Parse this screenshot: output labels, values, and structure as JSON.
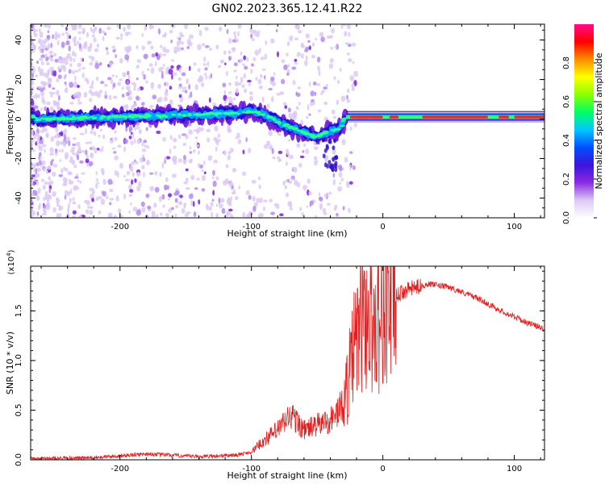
{
  "title": "GN02.2023.365.12.41.R22",
  "chart_data": [
    {
      "type": "heatmap",
      "xlabel": "Height of straight line (km)",
      "ylabel": "Frequency (Hz)",
      "xlim": [
        -268,
        123
      ],
      "ylim": [
        -50,
        48
      ],
      "xticks": [
        -200,
        -100,
        0,
        100
      ],
      "yticks": [
        -40,
        -20,
        0,
        20,
        40
      ],
      "colorbar": {
        "label": "Normalized spectral amplitude",
        "range": [
          0,
          1
        ],
        "ticks": [
          0.0,
          0.2,
          0.4,
          0.6,
          0.8
        ],
        "tick_labels": [
          "0.0",
          "0.2",
          "0.4",
          "0.6",
          "0.8"
        ],
        "colormap": [
          "#ffffff",
          "#dcc8f5",
          "#8a2be2",
          "#3c14dc",
          "#0050ff",
          "#00c8ff",
          "#00ff64",
          "#8cff00",
          "#ffff00",
          "#ff8c00",
          "#ff0000",
          "#ff0a8c"
        ]
      },
      "ridge": [
        {
          "x": -265,
          "y": 0
        },
        {
          "x": -200,
          "y": 1
        },
        {
          "x": -150,
          "y": 2
        },
        {
          "x": -110,
          "y": 3
        },
        {
          "x": -100,
          "y": 4
        },
        {
          "x": -90,
          "y": 2
        },
        {
          "x": -75,
          "y": -3
        },
        {
          "x": -60,
          "y": -7
        },
        {
          "x": -50,
          "y": -9
        },
        {
          "x": -40,
          "y": -6
        },
        {
          "x": -33,
          "y": -5
        },
        {
          "x": -28,
          "y": 1
        },
        {
          "x": -20,
          "y": 1
        },
        {
          "x": 0,
          "y": 1
        },
        {
          "x": 40,
          "y": 1
        },
        {
          "x": 100,
          "y": 1
        },
        {
          "x": 123,
          "y": 1
        }
      ]
    },
    {
      "type": "line",
      "xlabel": "Height of straight line (km)",
      "ylabel": "SNR (10 * v/v)",
      "y_multiplier_label": "(x10",
      "y_multiplier_exp": "4",
      "y_multiplier_close": ")",
      "xlim": [
        -268,
        123
      ],
      "ylim": [
        0,
        1.95
      ],
      "xticks": [
        -200,
        -100,
        0,
        100
      ],
      "yticks": [
        0.0,
        0.5,
        1.0,
        1.5
      ],
      "ytick_labels": [
        "0.0",
        "0.5",
        "1.0",
        "1.5"
      ],
      "line_color": "#e02020",
      "series": [
        {
          "values": [
            {
              "x": -268,
              "y": 0.01
            },
            {
              "x": -220,
              "y": 0.02
            },
            {
              "x": -180,
              "y": 0.06
            },
            {
              "x": -140,
              "y": 0.03
            },
            {
              "x": -110,
              "y": 0.05
            },
            {
              "x": -100,
              "y": 0.08
            },
            {
              "x": -90,
              "y": 0.2
            },
            {
              "x": -80,
              "y": 0.3
            },
            {
              "x": -70,
              "y": 0.45
            },
            {
              "x": -60,
              "y": 0.3
            },
            {
              "x": -50,
              "y": 0.35
            },
            {
              "x": -40,
              "y": 0.4
            },
            {
              "x": -30,
              "y": 0.55
            },
            {
              "x": -22,
              "y": 1.1
            },
            {
              "x": -15,
              "y": 1.5
            },
            {
              "x": -8,
              "y": 1.35
            },
            {
              "x": 0,
              "y": 1.5
            },
            {
              "x": 10,
              "y": 1.65
            },
            {
              "x": 20,
              "y": 1.72
            },
            {
              "x": 35,
              "y": 1.77
            },
            {
              "x": 50,
              "y": 1.74
            },
            {
              "x": 70,
              "y": 1.64
            },
            {
              "x": 90,
              "y": 1.5
            },
            {
              "x": 110,
              "y": 1.38
            },
            {
              "x": 123,
              "y": 1.32
            }
          ]
        }
      ]
    }
  ]
}
